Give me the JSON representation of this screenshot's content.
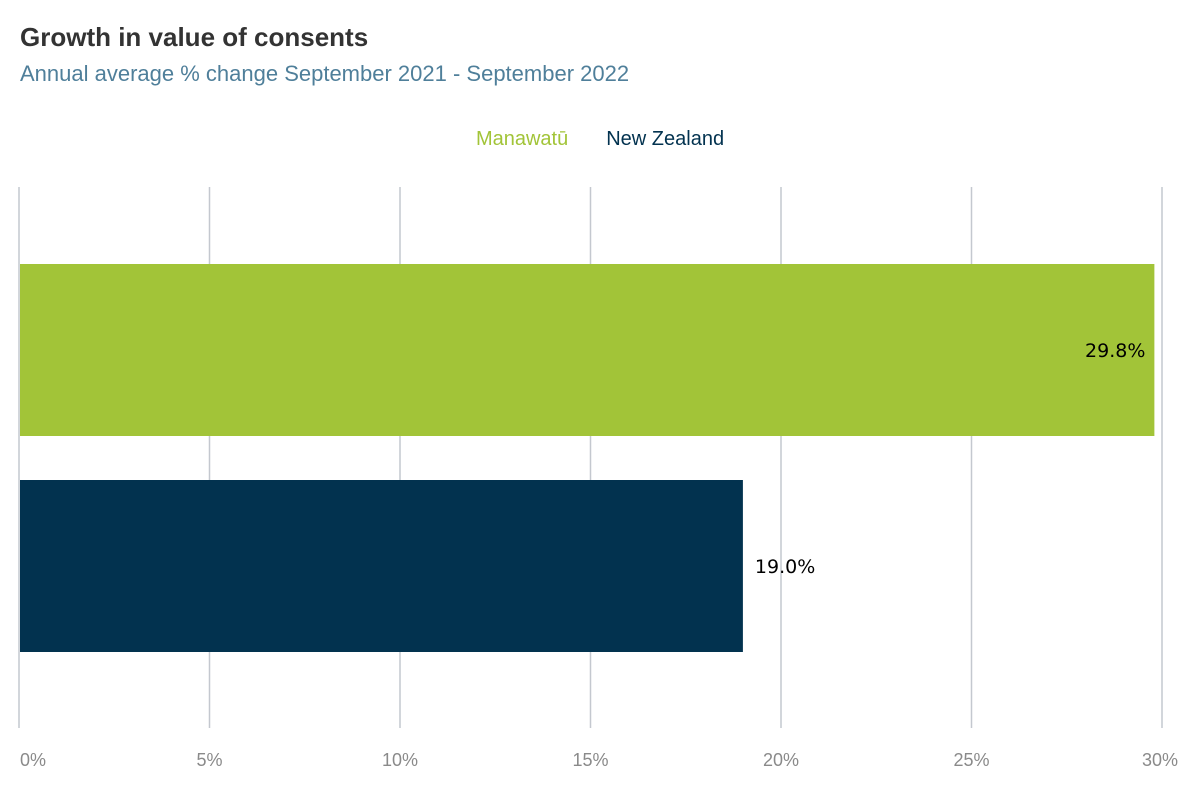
{
  "chart_data": {
    "type": "bar",
    "orientation": "horizontal",
    "title": "Growth in value of consents",
    "subtitle": "Annual average % change September 2021 - September 2022",
    "series": [
      {
        "name": "Manawatū",
        "value": 29.8,
        "label": "29.8%",
        "color": "#a2c438"
      },
      {
        "name": "New Zealand",
        "value": 19.0,
        "label": "19.0%",
        "color": "#02324f"
      }
    ],
    "xlim": [
      0,
      30
    ],
    "xticks": [
      {
        "value": 0,
        "label": "0%"
      },
      {
        "value": 5,
        "label": "5%"
      },
      {
        "value": 10,
        "label": "10%"
      },
      {
        "value": 15,
        "label": "15%"
      },
      {
        "value": 20,
        "label": "20%"
      },
      {
        "value": 25,
        "label": "25%"
      },
      {
        "value": 30,
        "label": "30%"
      }
    ],
    "grid": true,
    "legend_position": "top-center",
    "xlabel": "",
    "ylabel": ""
  }
}
